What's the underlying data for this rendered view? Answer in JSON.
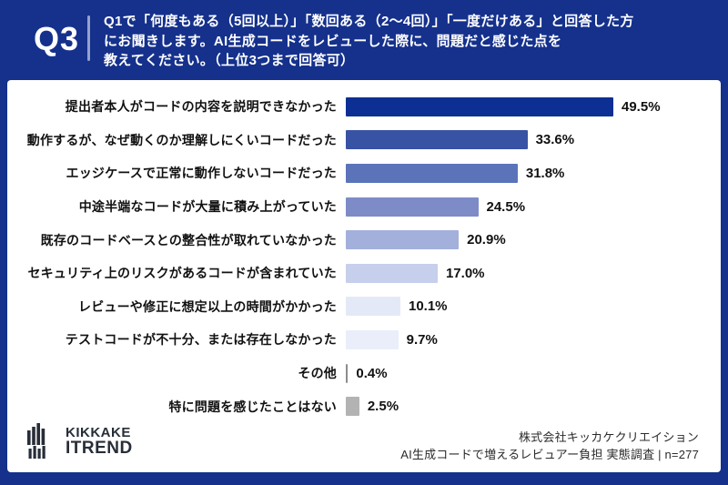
{
  "header": {
    "question_number": "Q3",
    "question_lines": [
      "Q1で「何度もある（5回以上）」「数回ある（2〜4回）」「一度だけある」と回答した方",
      "にお聞きします。AI生成コードをレビューした際に、問題だと感じた点を",
      "教えてください。（上位3つまで回答可）"
    ]
  },
  "chart_data": {
    "type": "bar",
    "orientation": "horizontal",
    "unit": "%",
    "xlim": [
      0,
      55
    ],
    "grid": false,
    "categories": [
      "提出者本人がコードの内容を説明できなかった",
      "動作するが、なぜ動くのか理解しにくいコードだった",
      "エッジケースで正常に動作しないコードだった",
      "中途半端なコードが大量に積み上がっていた",
      "既存のコードベースとの整合性が取れていなかった",
      "セキュリティ上のリスクがあるコードが含まれていた",
      "レビューや修正に想定以上の時間がかかった",
      "テストコードが不十分、または存在しなかった",
      "その他",
      "特に問題を感じたことはない"
    ],
    "values": [
      49.5,
      33.6,
      31.8,
      24.5,
      20.9,
      17.0,
      10.1,
      9.7,
      0.4,
      2.5
    ],
    "value_labels": [
      "49.5%",
      "33.6%",
      "31.8%",
      "24.5%",
      "20.9%",
      "17.0%",
      "10.1%",
      "9.7%",
      "0.4%",
      "2.5%"
    ],
    "bar_colors": [
      "#0d2f93",
      "#3853a4",
      "#5b73b9",
      "#7d8cc6",
      "#a3b0db",
      "#c6cfec",
      "#e4e9f7",
      "#eaeefa",
      "#8c8c8c",
      "#b3b3b3"
    ]
  },
  "footer": {
    "logo_line1": "KIKKAKE",
    "logo_line2": "ITREND",
    "credit_line1": "株式会社キッカケクリエイション",
    "credit_line2": "AI生成コードで増えるレビュアー負担 実態調査 | n=277"
  },
  "colors": {
    "background_navy": "#15318c",
    "card_white": "#ffffff",
    "text_dark": "#111111",
    "logo_dark": "#272e38"
  }
}
